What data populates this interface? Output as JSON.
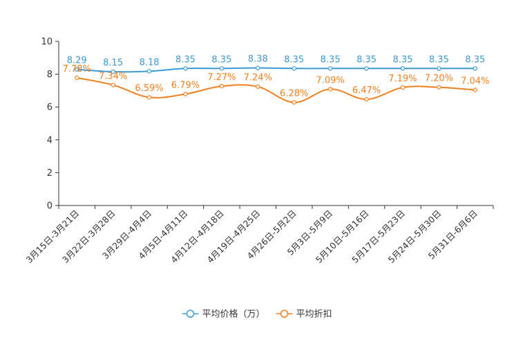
{
  "chart_data": {
    "type": "line",
    "title": "",
    "xlabel": "",
    "ylabel": "",
    "ylim": [
      0,
      10
    ],
    "yticks": [
      "0",
      "2",
      "4",
      "6",
      "8",
      "10"
    ],
    "categories": [
      "3月15日-3月21日",
      "3月22日-3月28日",
      "3月29日-4月4日",
      "4月5日-4月11日",
      "4月12日-4月18日",
      "4月19日-4月25日",
      "4月26日-5月2日",
      "5月3日-5月9日",
      "5月10日-5月16日",
      "5月17日-5月23日",
      "5月24日-5月30日",
      "5月31日-6月6日"
    ],
    "series": [
      {
        "name": "平均价格（万）",
        "color": "#3a9ad1",
        "values": [
          8.29,
          8.15,
          8.18,
          8.35,
          8.35,
          8.38,
          8.35,
          8.35,
          8.35,
          8.35,
          8.35,
          8.35
        ],
        "labels": [
          "8.29",
          "8.15",
          "8.18",
          "8.35",
          "8.35",
          "8.38",
          "8.35",
          "8.35",
          "8.35",
          "8.35",
          "8.35",
          "8.35"
        ]
      },
      {
        "name": "平均折扣",
        "color": "#f07f1d",
        "values": [
          7.78,
          7.34,
          6.59,
          6.79,
          7.27,
          7.24,
          6.28,
          7.09,
          6.47,
          7.19,
          7.2,
          7.04
        ],
        "labels": [
          "7.78%",
          "7.34%",
          "6.59%",
          "6.79%",
          "7.27%",
          "7.24%",
          "6.28%",
          "7.09%",
          "6.47%",
          "7.19%",
          "7.20%",
          "7.04%"
        ]
      }
    ],
    "legend_position": "bottom-center"
  }
}
